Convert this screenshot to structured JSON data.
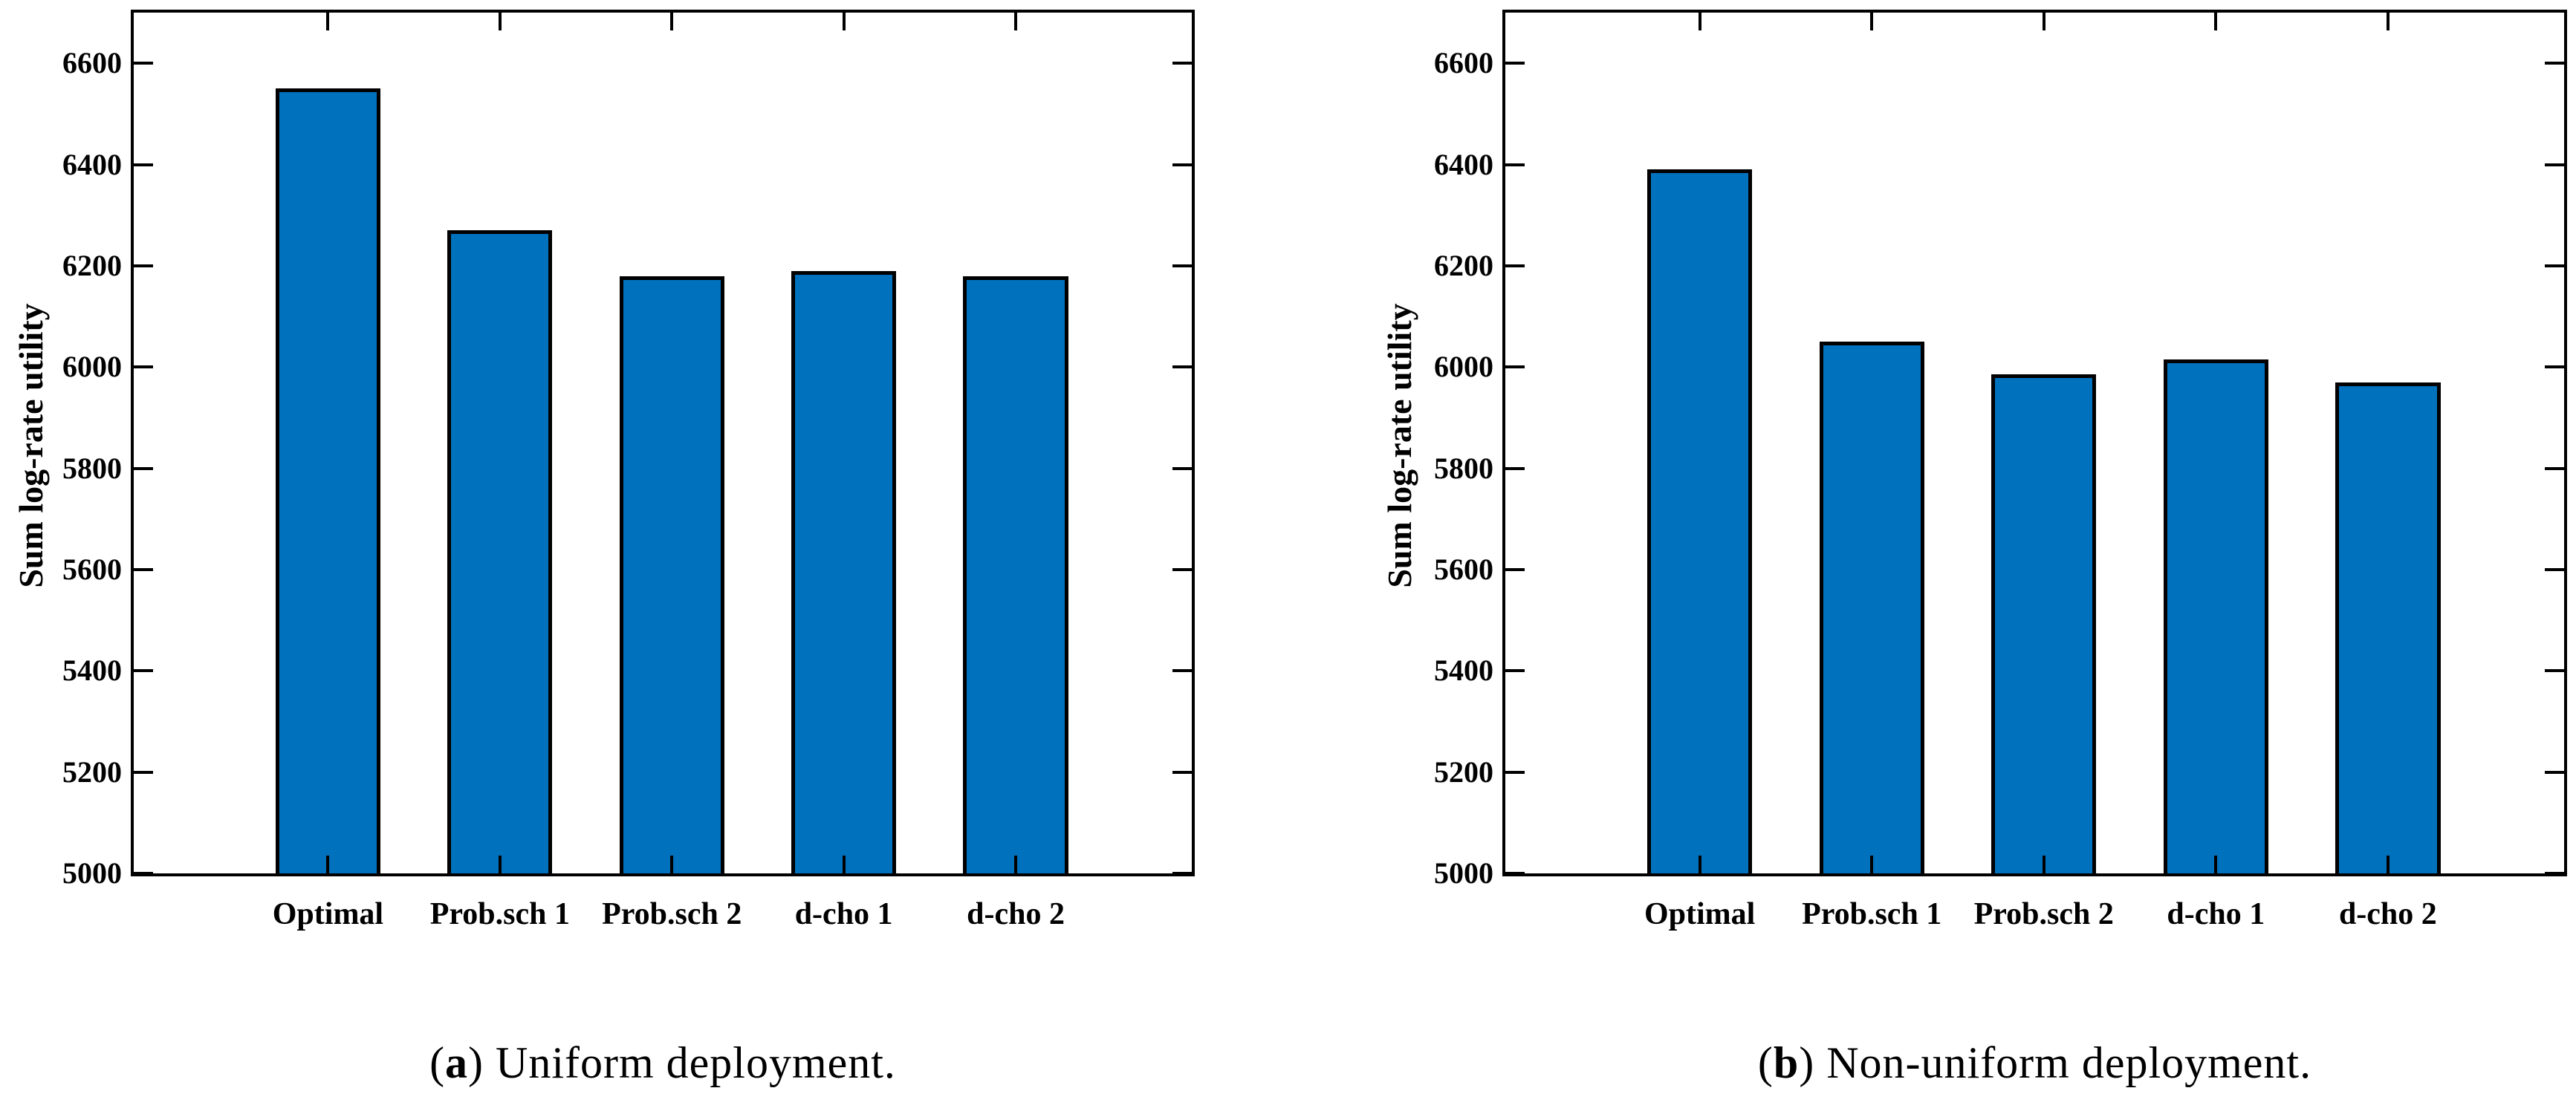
{
  "figure": {
    "description": "Two-panel bar chart figure comparing sum log-rate utility of scheduling schemes",
    "background": "#ffffff"
  },
  "chart_data": [
    {
      "type": "bar",
      "panel": "a",
      "title": "",
      "caption": "(a) Uniform deployment.",
      "caption_parts": {
        "prefix": "(",
        "bold": "a",
        "suffix": ") Uniform deployment."
      },
      "categories": [
        "Optimal",
        "Prob.sch 1",
        "Prob.sch 2",
        "d-cho 1",
        "d-cho 2"
      ],
      "values": [
        6550,
        6270,
        6180,
        6190,
        6180
      ],
      "xlabel": "",
      "ylabel": "Sum log-rate utility",
      "ylim": [
        5000,
        6700
      ],
      "yticks": [
        5000,
        5200,
        5400,
        5600,
        5800,
        6000,
        6200,
        6400,
        6600
      ],
      "grid": false,
      "legend": null,
      "bar_color": "#0072BD",
      "bar_edge_color": "#000000"
    },
    {
      "type": "bar",
      "panel": "b",
      "title": "",
      "caption": "(b) Non-uniform deployment.",
      "caption_parts": {
        "prefix": "(",
        "bold": "b",
        "suffix": ") Non-uniform deployment."
      },
      "categories": [
        "Optimal",
        "Prob.sch 1",
        "Prob.sch 2",
        "d-cho 1",
        "d-cho 2"
      ],
      "values": [
        6390,
        6050,
        5985,
        6015,
        5970
      ],
      "xlabel": "",
      "ylabel": "Sum log-rate utility",
      "ylim": [
        5000,
        6700
      ],
      "yticks": [
        5000,
        5200,
        5400,
        5600,
        5800,
        6000,
        6200,
        6400,
        6600
      ],
      "grid": false,
      "legend": null,
      "bar_color": "#0072BD",
      "bar_edge_color": "#000000"
    }
  ]
}
